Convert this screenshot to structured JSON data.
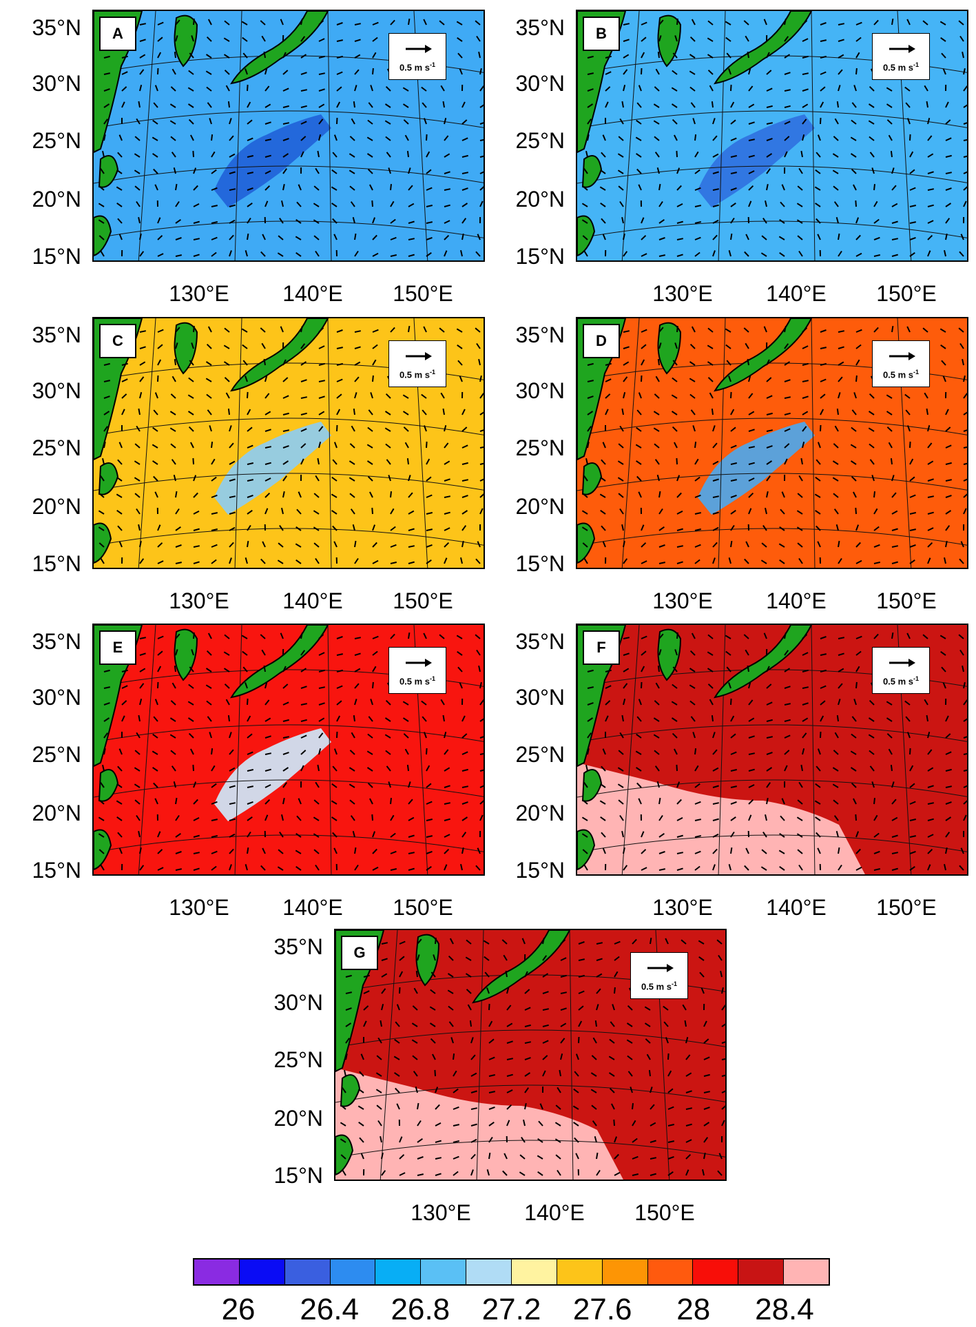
{
  "arrow_reference": "0.5 m s",
  "arrow_reference_superscript": "-1",
  "lat_labels": [
    "35°N",
    "30°N",
    "25°N",
    "20°N",
    "15°N"
  ],
  "lon_labels": [
    "130°E",
    "140°E",
    "150°E"
  ],
  "panels": [
    {
      "id": "A",
      "ocean_color": "#3faaf5"
    },
    {
      "id": "B",
      "ocean_color": "#45b4f6"
    },
    {
      "id": "C",
      "ocean_color": "#fdc419"
    },
    {
      "id": "D",
      "ocean_color": "#fe5c0b"
    },
    {
      "id": "E",
      "ocean_color": "#f8150f"
    },
    {
      "id": "F",
      "ocean_color": "#cb1512"
    },
    {
      "id": "G",
      "ocean_color": "#cb1512"
    }
  ],
  "colorbar": {
    "colors": [
      "#8a2be2",
      "#0a0cf5",
      "#3a5fe0",
      "#2d8cf0",
      "#08aef5",
      "#5ac0f5",
      "#b0dcf5",
      "#fff3a0",
      "#fdc419",
      "#fd9505",
      "#ff5a0e",
      "#f80e08",
      "#c81414",
      "#ffb4b4"
    ],
    "labels": [
      "26",
      "26.4",
      "26.8",
      "27.2",
      "27.6",
      "28",
      "28.4"
    ]
  },
  "land_color": "#1fa51f"
}
